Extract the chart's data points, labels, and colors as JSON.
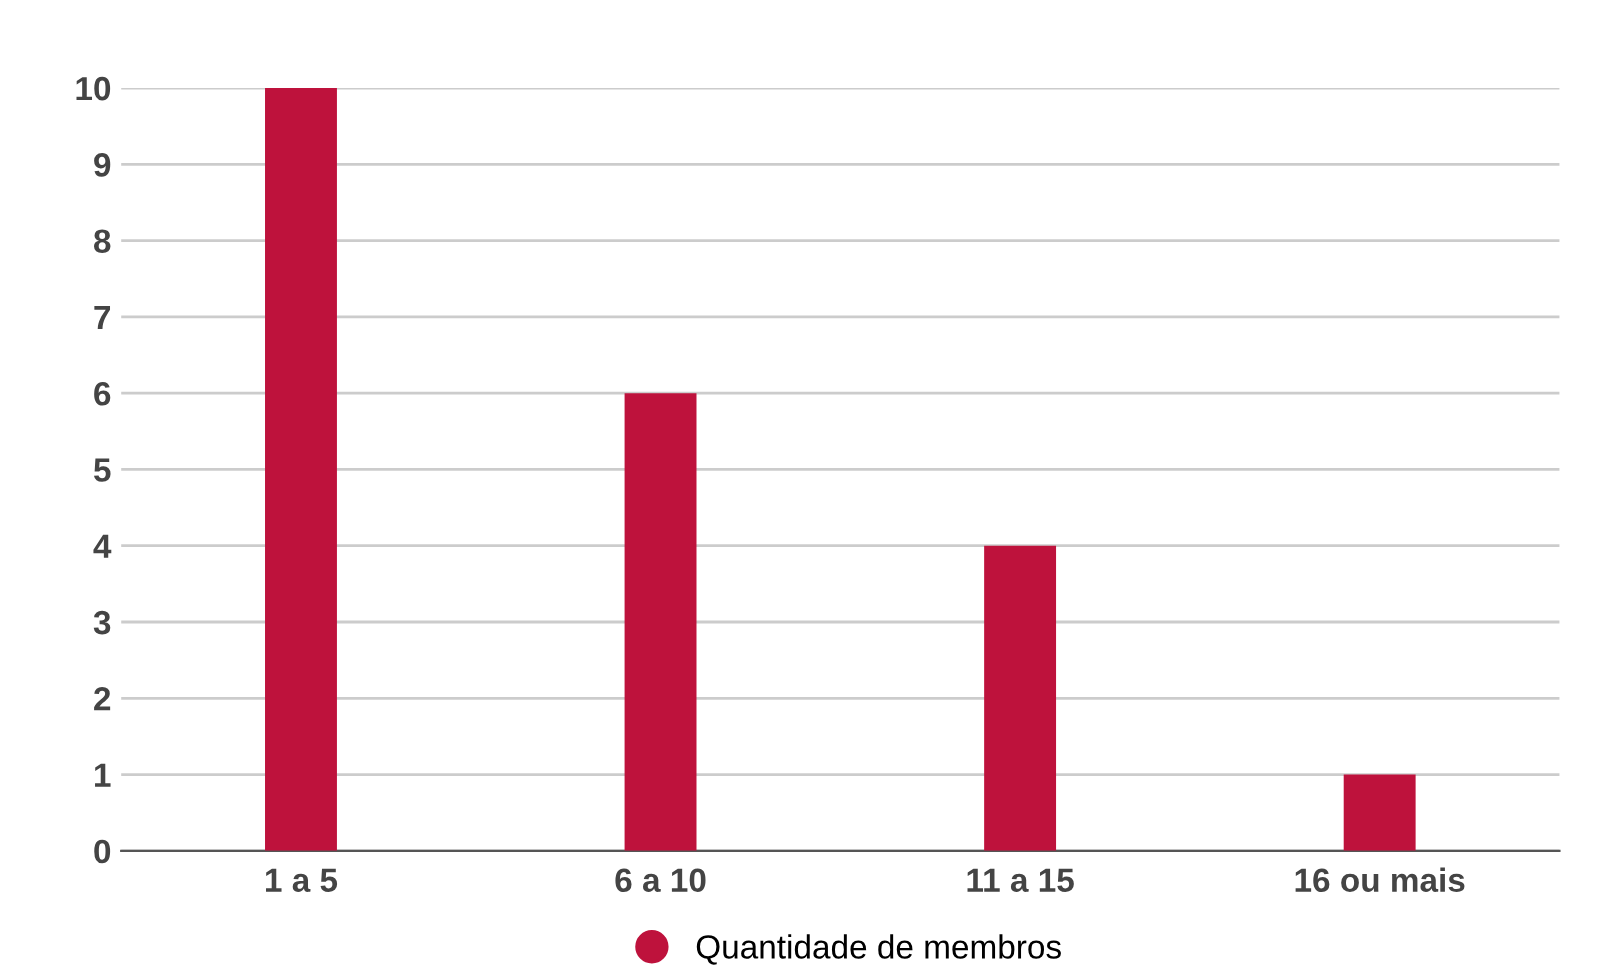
{
  "chart_data": {
    "type": "bar",
    "categories": [
      "1 a 5",
      "6 a 10",
      "11 a 15",
      "16 ou mais"
    ],
    "series": [
      {
        "name": "Quantidade de membros",
        "color": "#be123c",
        "values": [
          10,
          6,
          4,
          1
        ]
      }
    ],
    "ylim": [
      0,
      10
    ],
    "yticks": [
      0,
      1,
      2,
      3,
      4,
      5,
      6,
      7,
      8,
      9,
      10
    ],
    "grid": "y",
    "legend": "bottom",
    "marker": "circle"
  }
}
